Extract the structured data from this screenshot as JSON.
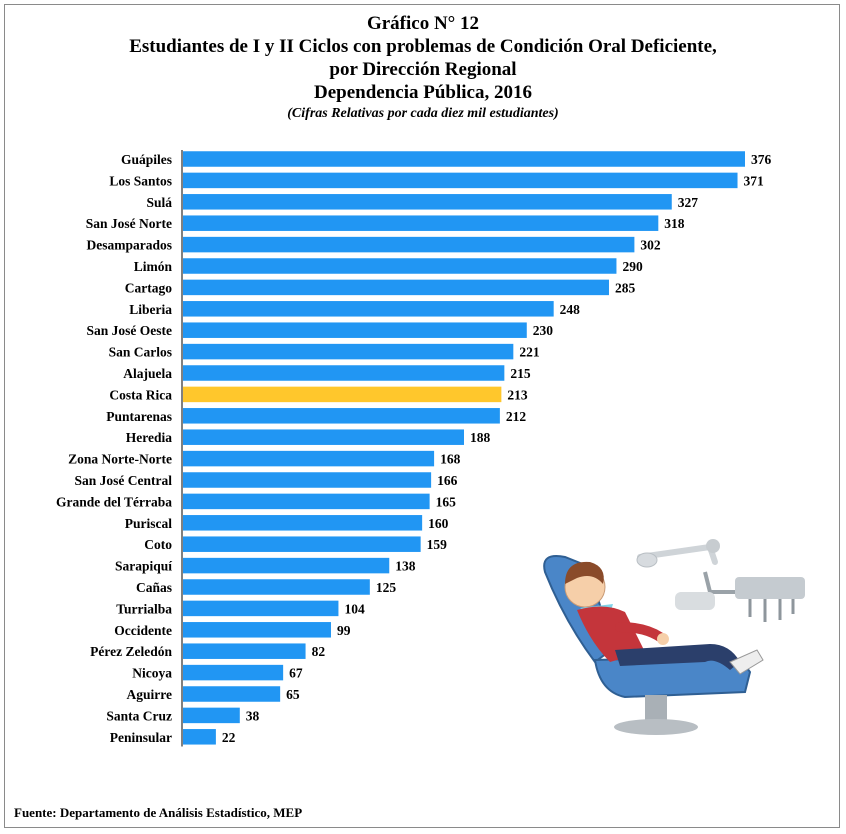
{
  "title": {
    "line1": "Gráfico N° 12",
    "line2": "Estudiantes de I y II Ciclos con problemas de Condición Oral Deficiente,",
    "line3": "por Dirección Regional",
    "line4": "Dependencia Pública, 2016",
    "subtitle": "(Cifras Relativas por cada diez mil estudiantes)"
  },
  "source": "Fuente: Departamento de Análisis Estadístico, MEP",
  "colors": {
    "bar": "#2196f3",
    "highlight": "#ffc72c",
    "axis": "#000000"
  },
  "chart_data": {
    "type": "bar",
    "orientation": "horizontal",
    "title": "Estudiantes de I y II Ciclos con problemas de Condición Oral Deficiente, por Dirección Regional",
    "xlabel": "",
    "ylabel": "",
    "grid": false,
    "legend": "none",
    "xlim": [
      0,
      376
    ],
    "categories": [
      "Guápiles",
      "Los Santos",
      "Sulá",
      "San José Norte",
      "Desamparados",
      "Limón",
      "Cartago",
      "Liberia",
      "San José Oeste",
      "San Carlos",
      "Alajuela",
      "Costa Rica",
      "Puntarenas",
      "Heredia",
      "Zona Norte-Norte",
      "San José Central",
      "Grande del Térraba",
      "Puriscal",
      "Coto",
      "Sarapiquí",
      "Cañas",
      "Turrialba",
      "Occidente",
      "Pérez Zeledón",
      "Nicoya",
      "Aguirre",
      "Santa Cruz",
      "Peninsular"
    ],
    "values": [
      376,
      371,
      327,
      318,
      302,
      290,
      285,
      248,
      230,
      221,
      215,
      213,
      212,
      188,
      168,
      166,
      165,
      160,
      159,
      138,
      125,
      104,
      99,
      82,
      67,
      65,
      38,
      22
    ],
    "highlight_category": "Costa Rica"
  },
  "illustration": {
    "description_icon": "dentist-chair-child-icon"
  }
}
